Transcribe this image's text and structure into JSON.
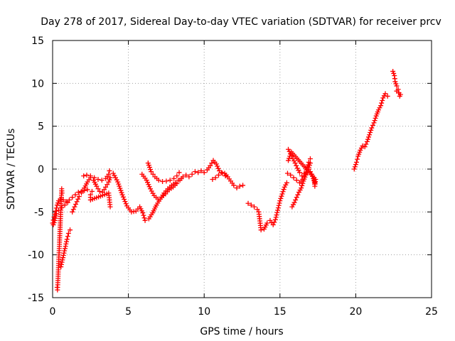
{
  "chart_data": {
    "type": "scatter",
    "title": "Day 278 of 2017, Sidereal Day-to-day VTEC variation (SDTVAR) for receiver prcv",
    "xlabel": "GPS time / hours",
    "ylabel": "SDTVAR / TECUs",
    "xlim": [
      0,
      25
    ],
    "ylim": [
      -15,
      15
    ],
    "xticks": [
      0,
      5,
      10,
      15,
      20,
      25
    ],
    "yticks": [
      -15,
      -10,
      -5,
      0,
      5,
      10,
      15
    ],
    "xtick_labels": [
      "0",
      "5",
      "10",
      "15",
      "20",
      "25"
    ],
    "ytick_labels": [
      "-15",
      "-10",
      "-5",
      "0",
      "5",
      "10",
      "15"
    ],
    "grid": true,
    "marker": "+",
    "color": "#ff0000",
    "traces": [
      [
        [
          0.0,
          -6.3
        ],
        [
          0.1,
          -5.6
        ],
        [
          0.2,
          -4.9
        ],
        [
          0.3,
          -4.2
        ],
        [
          0.4,
          -3.7
        ],
        [
          0.5,
          -3.5
        ],
        [
          0.7,
          -3.6
        ],
        [
          0.9,
          -3.8
        ],
        [
          1.1,
          -3.6
        ],
        [
          1.3,
          -3.3
        ],
        [
          1.5,
          -3.0
        ],
        [
          1.7,
          -2.7
        ],
        [
          1.9,
          -2.6
        ],
        [
          2.1,
          -2.5
        ],
        [
          2.3,
          -2.4
        ]
      ],
      [
        [
          0.05,
          -6.5
        ],
        [
          0.15,
          -6.0
        ],
        [
          0.25,
          -5.2
        ],
        [
          0.4,
          -4.8
        ],
        [
          0.6,
          -4.5
        ],
        [
          0.8,
          -4.2
        ],
        [
          1.0,
          -3.9
        ]
      ],
      [
        [
          0.55,
          -11.4
        ],
        [
          0.65,
          -10.6
        ],
        [
          0.75,
          -9.8
        ],
        [
          0.85,
          -9.0
        ],
        [
          0.95,
          -8.2
        ],
        [
          1.05,
          -7.5
        ],
        [
          1.15,
          -7.1
        ]
      ],
      [
        [
          0.3,
          -13.8
        ],
        [
          0.32,
          -14.1
        ],
        [
          0.34,
          -13.5
        ],
        [
          0.6,
          -2.3
        ],
        [
          0.62,
          -2.8
        ]
      ],
      [
        [
          1.3,
          -5.0
        ],
        [
          1.45,
          -4.4
        ],
        [
          1.6,
          -3.8
        ],
        [
          1.75,
          -3.2
        ],
        [
          1.9,
          -2.8
        ],
        [
          2.1,
          -2.2
        ],
        [
          2.3,
          -1.5
        ],
        [
          2.5,
          -1.0
        ],
        [
          2.7,
          -1.3
        ],
        [
          2.9,
          -2.0
        ],
        [
          3.1,
          -2.6
        ],
        [
          3.3,
          -2.7
        ],
        [
          3.5,
          -2.1
        ],
        [
          3.7,
          -1.5
        ],
        [
          3.8,
          -1.0
        ]
      ],
      [
        [
          2.05,
          -0.8
        ],
        [
          2.25,
          -0.7
        ],
        [
          2.5,
          -0.8
        ],
        [
          2.75,
          -1.0
        ],
        [
          3.0,
          -1.2
        ],
        [
          3.25,
          -1.3
        ],
        [
          3.5,
          -1.1
        ],
        [
          3.7,
          -0.6
        ],
        [
          3.75,
          -0.2
        ]
      ],
      [
        [
          2.6,
          -2.6
        ],
        [
          2.5,
          -3.0
        ],
        [
          2.5,
          -3.6
        ],
        [
          3.7,
          -2.8
        ],
        [
          3.75,
          -3.6
        ],
        [
          3.8,
          -4.4
        ]
      ],
      [
        [
          4.0,
          -0.5
        ],
        [
          4.3,
          -1.5
        ],
        [
          4.6,
          -3.0
        ],
        [
          4.9,
          -4.3
        ],
        [
          5.2,
          -5.0
        ],
        [
          5.5,
          -4.9
        ],
        [
          5.75,
          -4.4
        ],
        [
          5.95,
          -5.1
        ],
        [
          6.1,
          -6.0
        ],
        [
          6.35,
          -5.8
        ],
        [
          6.6,
          -5.1
        ],
        [
          6.85,
          -4.2
        ],
        [
          7.1,
          -3.5
        ],
        [
          7.35,
          -2.8
        ],
        [
          7.6,
          -2.3
        ],
        [
          7.85,
          -1.9
        ],
        [
          8.1,
          -1.6
        ],
        [
          8.3,
          -1.3
        ]
      ],
      [
        [
          5.9,
          -0.6
        ],
        [
          6.2,
          -1.3
        ],
        [
          6.45,
          -2.3
        ],
        [
          6.7,
          -3.1
        ],
        [
          6.95,
          -3.5
        ],
        [
          7.2,
          -3.3
        ],
        [
          7.45,
          -2.9
        ],
        [
          7.7,
          -2.4
        ],
        [
          7.95,
          -2.1
        ],
        [
          8.2,
          -1.7
        ]
      ],
      [
        [
          6.3,
          0.7
        ],
        [
          6.5,
          -0.3
        ],
        [
          6.75,
          -0.9
        ],
        [
          7.0,
          -1.3
        ],
        [
          7.25,
          -1.45
        ],
        [
          7.5,
          -1.4
        ],
        [
          7.75,
          -1.3
        ],
        [
          8.0,
          -1.1
        ],
        [
          8.2,
          -0.8
        ],
        [
          8.35,
          -0.4
        ]
      ],
      [
        [
          8.4,
          -1.3
        ],
        [
          8.6,
          -0.9
        ],
        [
          8.8,
          -0.7
        ],
        [
          9.0,
          -0.9
        ],
        [
          9.2,
          -0.6
        ],
        [
          9.4,
          -0.3
        ],
        [
          9.6,
          -0.4
        ],
        [
          9.8,
          -0.2
        ],
        [
          10.0,
          -0.4
        ],
        [
          10.2,
          -0.1
        ],
        [
          10.4,
          0.4
        ],
        [
          10.6,
          1.0
        ],
        [
          10.8,
          0.6
        ],
        [
          11.0,
          -0.2
        ],
        [
          11.2,
          -0.5
        ],
        [
          11.4,
          -0.8
        ]
      ],
      [
        [
          10.55,
          -1.2
        ],
        [
          10.75,
          -1.0
        ],
        [
          10.95,
          -0.7
        ],
        [
          11.15,
          -0.4
        ],
        [
          11.35,
          -0.5
        ],
        [
          11.55,
          -0.9
        ],
        [
          11.75,
          -1.4
        ],
        [
          11.95,
          -1.9
        ],
        [
          12.15,
          -2.2
        ],
        [
          12.35,
          -2.0
        ],
        [
          12.55,
          -1.9
        ]
      ],
      [
        [
          12.9,
          -4.0
        ],
        [
          13.1,
          -4.2
        ],
        [
          13.3,
          -4.4
        ],
        [
          13.5,
          -4.7
        ],
        [
          13.6,
          -5.0
        ],
        [
          13.75,
          -7.1
        ],
        [
          13.95,
          -7.0
        ],
        [
          14.15,
          -6.3
        ],
        [
          14.35,
          -6.0
        ],
        [
          14.55,
          -6.5
        ],
        [
          14.7,
          -5.9
        ],
        [
          14.85,
          -4.8
        ],
        [
          15.0,
          -3.7
        ],
        [
          15.15,
          -2.9
        ],
        [
          15.3,
          -2.1
        ],
        [
          15.45,
          -1.6
        ]
      ],
      [
        [
          15.55,
          2.3
        ],
        [
          15.7,
          1.8
        ],
        [
          15.85,
          1.2
        ],
        [
          16.0,
          0.7
        ],
        [
          16.15,
          0.1
        ],
        [
          16.3,
          -0.4
        ],
        [
          16.45,
          -0.8
        ],
        [
          16.6,
          -0.5
        ],
        [
          16.75,
          -0.1
        ],
        [
          16.9,
          0.2
        ],
        [
          17.0,
          0.7
        ]
      ],
      [
        [
          15.5,
          -0.5
        ],
        [
          15.7,
          -0.7
        ],
        [
          15.9,
          -1.0
        ],
        [
          16.1,
          -1.3
        ],
        [
          16.3,
          -1.6
        ],
        [
          16.5,
          -1.2
        ],
        [
          16.7,
          -0.6
        ],
        [
          16.9,
          0.0
        ],
        [
          17.1,
          -0.6
        ],
        [
          17.3,
          -1.6
        ]
      ],
      [
        [
          15.8,
          -4.4
        ],
        [
          15.95,
          -3.9
        ],
        [
          16.1,
          -3.3
        ],
        [
          16.25,
          -2.7
        ],
        [
          16.4,
          -2.2
        ],
        [
          16.55,
          -1.4
        ],
        [
          16.7,
          -0.7
        ],
        [
          16.8,
          0.2
        ],
        [
          16.9,
          0.8
        ],
        [
          17.0,
          1.2
        ]
      ],
      [
        [
          15.55,
          1.0
        ],
        [
          15.65,
          1.5
        ],
        [
          15.75,
          2.0
        ],
        [
          17.25,
          -1.0
        ],
        [
          17.3,
          -2.0
        ],
        [
          17.35,
          -1.2
        ]
      ],
      [
        [
          19.9,
          0.0
        ],
        [
          20.05,
          0.8
        ],
        [
          20.15,
          1.5
        ],
        [
          20.3,
          2.2
        ],
        [
          20.45,
          2.7
        ],
        [
          20.6,
          2.6
        ],
        [
          20.75,
          3.2
        ],
        [
          20.9,
          4.0
        ],
        [
          21.05,
          4.8
        ],
        [
          21.2,
          5.4
        ],
        [
          21.35,
          6.2
        ],
        [
          21.5,
          6.9
        ],
        [
          21.65,
          7.4
        ],
        [
          21.8,
          8.3
        ],
        [
          21.95,
          8.8
        ],
        [
          22.1,
          8.5
        ]
      ],
      [
        [
          22.45,
          11.4
        ],
        [
          22.55,
          10.9
        ],
        [
          22.6,
          10.2
        ],
        [
          22.7,
          9.7
        ],
        [
          22.8,
          9.3
        ],
        [
          22.85,
          8.9
        ],
        [
          22.9,
          8.5
        ],
        [
          22.95,
          8.7
        ],
        [
          22.7,
          9.1
        ]
      ]
    ]
  }
}
